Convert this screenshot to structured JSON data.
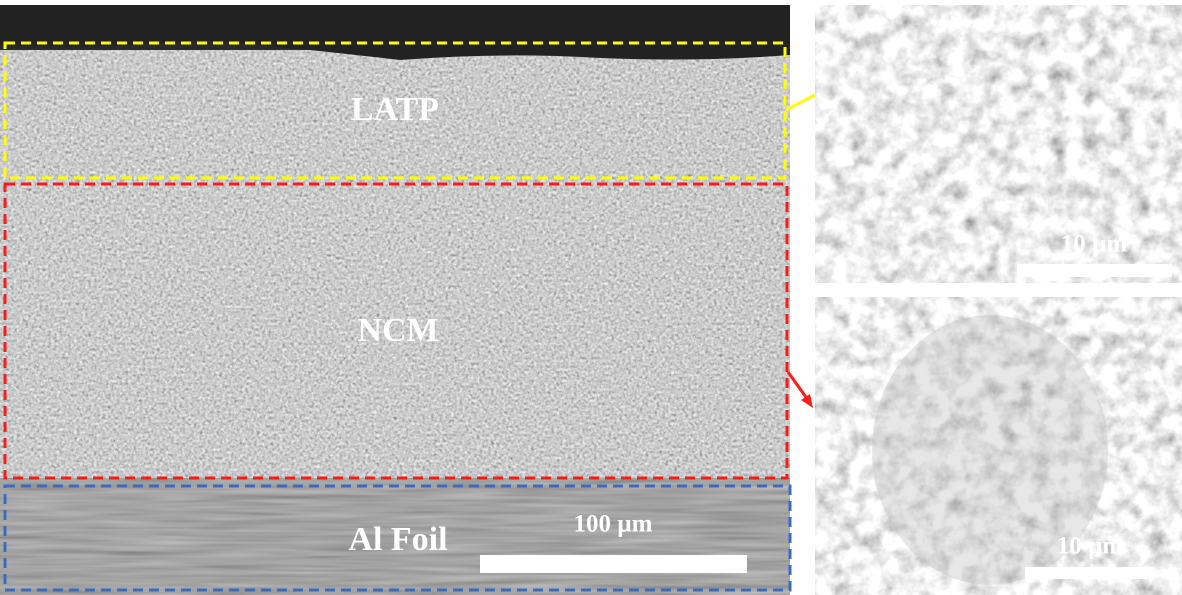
{
  "main_image": {
    "labels": {
      "latp": "LATP",
      "ncm": "NCM",
      "al_foil": "Al Foil"
    },
    "scale_bar": "100 µm"
  },
  "insets": [
    {
      "scale_bar": "10 µm"
    },
    {
      "scale_bar": "10 µm"
    }
  ]
}
